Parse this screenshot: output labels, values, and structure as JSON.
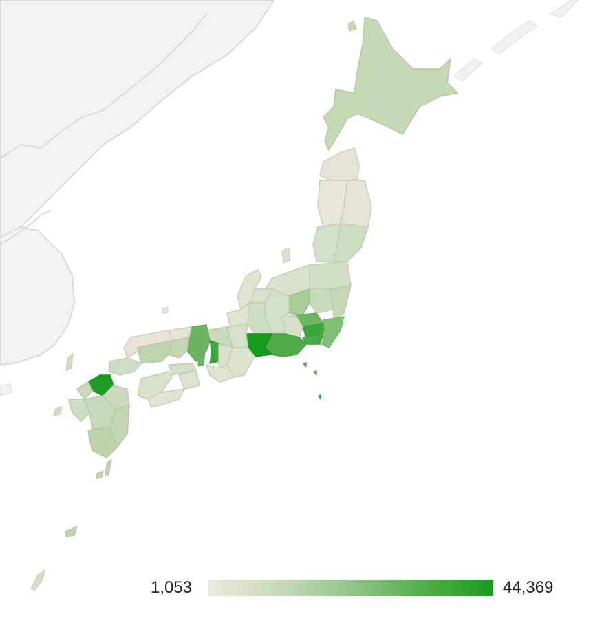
{
  "legend": {
    "min_label": "1,053",
    "max_label": "44,369",
    "min_color": "#ede8de",
    "max_color": "#1a9a1f"
  },
  "colors": {
    "background_land": "#f2f2f2",
    "land_border": "#d9d9d9",
    "region_border": "#c8d1c0"
  }
}
